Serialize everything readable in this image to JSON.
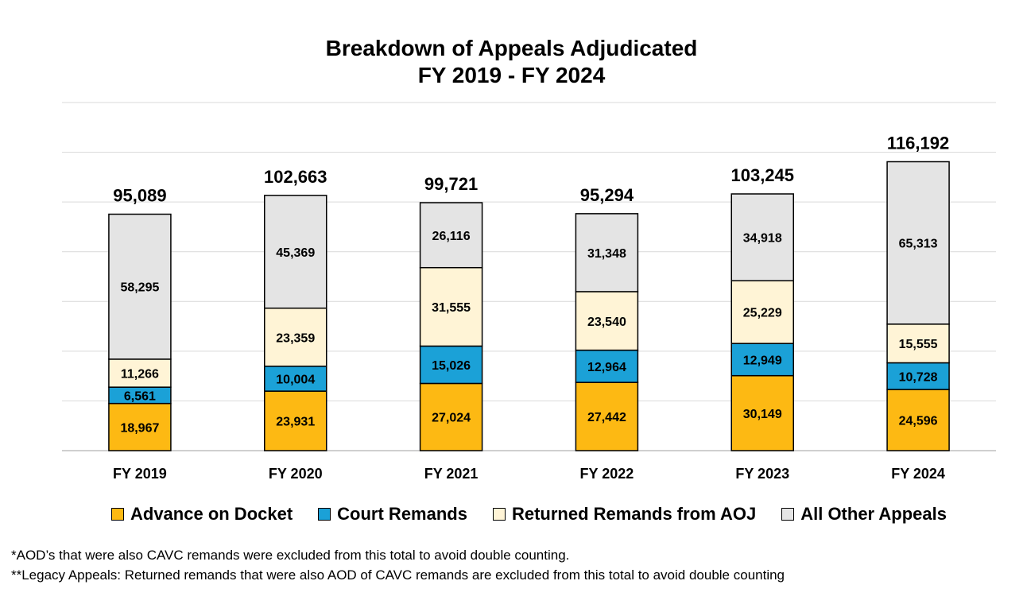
{
  "chart_data": {
    "type": "bar",
    "stacked": true,
    "title": "Breakdown of Appeals Adjudicated",
    "subtitle": "FY 2019 - FY 2024",
    "categories": [
      "FY 2019",
      "FY 2020",
      "FY 2021",
      "FY 2022",
      "FY 2023",
      "FY 2024"
    ],
    "series": [
      {
        "name": "Advance on Docket",
        "color": "#FDB913",
        "values": [
          18967,
          23931,
          27024,
          27442,
          30149,
          24596
        ],
        "labels": [
          "18,967",
          "23,931",
          "27,024",
          "27,442",
          "30,149",
          "24,596"
        ]
      },
      {
        "name": "Court Remands",
        "color": "#1BA1D7",
        "values": [
          6561,
          10004,
          15026,
          12964,
          12949,
          10728
        ],
        "labels": [
          "6,561",
          "10,004",
          "15,026",
          "12,964",
          "12,949",
          "10,728"
        ]
      },
      {
        "name": "Returned Remands from AOJ",
        "color": "#FFF4D6",
        "values": [
          11266,
          23359,
          31555,
          23540,
          25229,
          15555
        ],
        "labels": [
          "11,266",
          "23,359",
          "31,555",
          "23,540",
          "25,229",
          "15,555"
        ]
      },
      {
        "name": "All Other Appeals",
        "color": "#E4E4E4",
        "values": [
          58295,
          45369,
          26116,
          31348,
          34918,
          65313
        ],
        "labels": [
          "58,295",
          "45,369",
          "26,116",
          "31,348",
          "34,918",
          "65,313"
        ]
      }
    ],
    "totals": [
      95089,
      102663,
      99721,
      95294,
      103245,
      116192
    ],
    "total_labels": [
      "95,089",
      "102,663",
      "99,721",
      "95,294",
      "103,245",
      "116,192"
    ],
    "ylim": [
      0,
      140000
    ],
    "grid": true,
    "legend": "bottom",
    "xlabel": "",
    "ylabel": ""
  },
  "footnotes": [
    "*AOD’s that were also CAVC remands were excluded from this total to avoid double counting.",
    "**Legacy Appeals: Returned remands that were also AOD of CAVC remands are excluded from this total to avoid double counting"
  ]
}
